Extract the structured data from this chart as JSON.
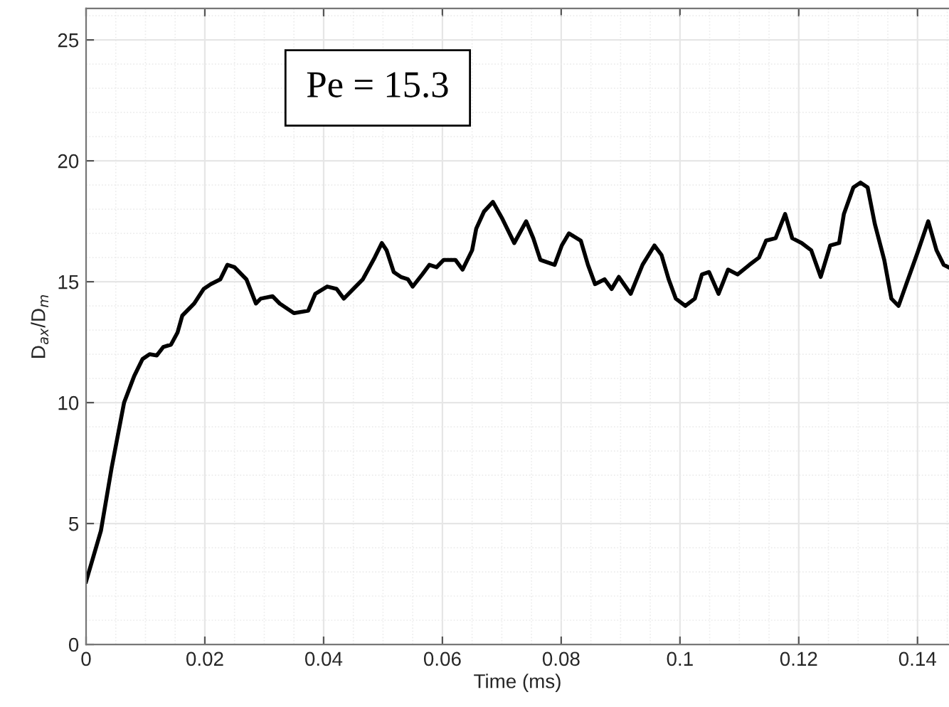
{
  "chart_data": {
    "type": "line",
    "xlabel": "Time (ms)",
    "ylabel": "D$_{ax}$/D$_{m}$",
    "annotations": [
      "Pe = 15.3"
    ],
    "xlim": [
      0,
      0.1453
    ],
    "ylim": [
      0,
      26.3
    ],
    "xticks": [
      0,
      0.02,
      0.04,
      0.06,
      0.08,
      0.1,
      0.12,
      0.14
    ],
    "yticks": [
      0,
      5,
      10,
      15,
      20,
      25
    ],
    "grid": true,
    "marker": "none",
    "line_style": "solid",
    "series": [
      {
        "color": "#000000",
        "x": [
          0,
          0.0025,
          0.0043,
          0.0064,
          0.0081,
          0.0095,
          0.0107,
          0.0119,
          0.013,
          0.0143,
          0.0154,
          0.0162,
          0.0182,
          0.0198,
          0.021,
          0.0226,
          0.0238,
          0.025,
          0.027,
          0.0286,
          0.0294,
          0.0314,
          0.0326,
          0.035,
          0.0374,
          0.0386,
          0.0406,
          0.0422,
          0.0434,
          0.045,
          0.0466,
          0.0486,
          0.0498,
          0.0506,
          0.0518,
          0.053,
          0.0542,
          0.055,
          0.0566,
          0.0578,
          0.059,
          0.0602,
          0.0622,
          0.0634,
          0.065,
          0.0657,
          0.067,
          0.0685,
          0.0701,
          0.0721,
          0.0741,
          0.0753,
          0.0765,
          0.0789,
          0.0801,
          0.0813,
          0.0833,
          0.0845,
          0.0857,
          0.0873,
          0.0885,
          0.0897,
          0.0917,
          0.0937,
          0.0957,
          0.0969,
          0.0981,
          0.0993,
          0.1009,
          0.1025,
          0.1037,
          0.1049,
          0.1065,
          0.1081,
          0.1097,
          0.1117,
          0.1133,
          0.1145,
          0.1161,
          0.1177,
          0.1189,
          0.1205,
          0.1221,
          0.1237,
          0.1253,
          0.1268,
          0.1276,
          0.1292,
          0.1304,
          0.1316,
          0.1328,
          0.1344,
          0.1356,
          0.1368,
          0.1384,
          0.14,
          0.1418,
          0.1432,
          0.1444,
          0.1452
        ],
        "values": [
          2.6,
          4.7,
          7.3,
          10.0,
          11.1,
          11.8,
          12.0,
          11.95,
          12.3,
          12.4,
          12.9,
          13.6,
          14.1,
          14.7,
          14.9,
          15.1,
          15.7,
          15.6,
          15.1,
          14.1,
          14.3,
          14.4,
          14.1,
          13.7,
          13.8,
          14.5,
          14.8,
          14.7,
          14.3,
          14.7,
          15.1,
          16.0,
          16.6,
          16.3,
          15.4,
          15.2,
          15.1,
          14.8,
          15.3,
          15.7,
          15.6,
          15.9,
          15.9,
          15.5,
          16.3,
          17.2,
          17.9,
          18.3,
          17.6,
          16.6,
          17.5,
          16.8,
          15.9,
          15.7,
          16.5,
          17.0,
          16.7,
          15.7,
          14.9,
          15.1,
          14.7,
          15.2,
          14.5,
          15.7,
          16.5,
          16.1,
          15.1,
          14.3,
          14.0,
          14.3,
          15.3,
          15.4,
          14.5,
          15.5,
          15.3,
          15.7,
          16.0,
          16.7,
          16.8,
          17.8,
          16.8,
          16.6,
          16.3,
          15.2,
          16.5,
          16.6,
          17.8,
          18.9,
          19.1,
          18.9,
          17.4,
          15.9,
          14.3,
          14.0,
          15.1,
          16.2,
          17.5,
          16.3,
          15.7,
          15.6
        ]
      }
    ]
  }
}
